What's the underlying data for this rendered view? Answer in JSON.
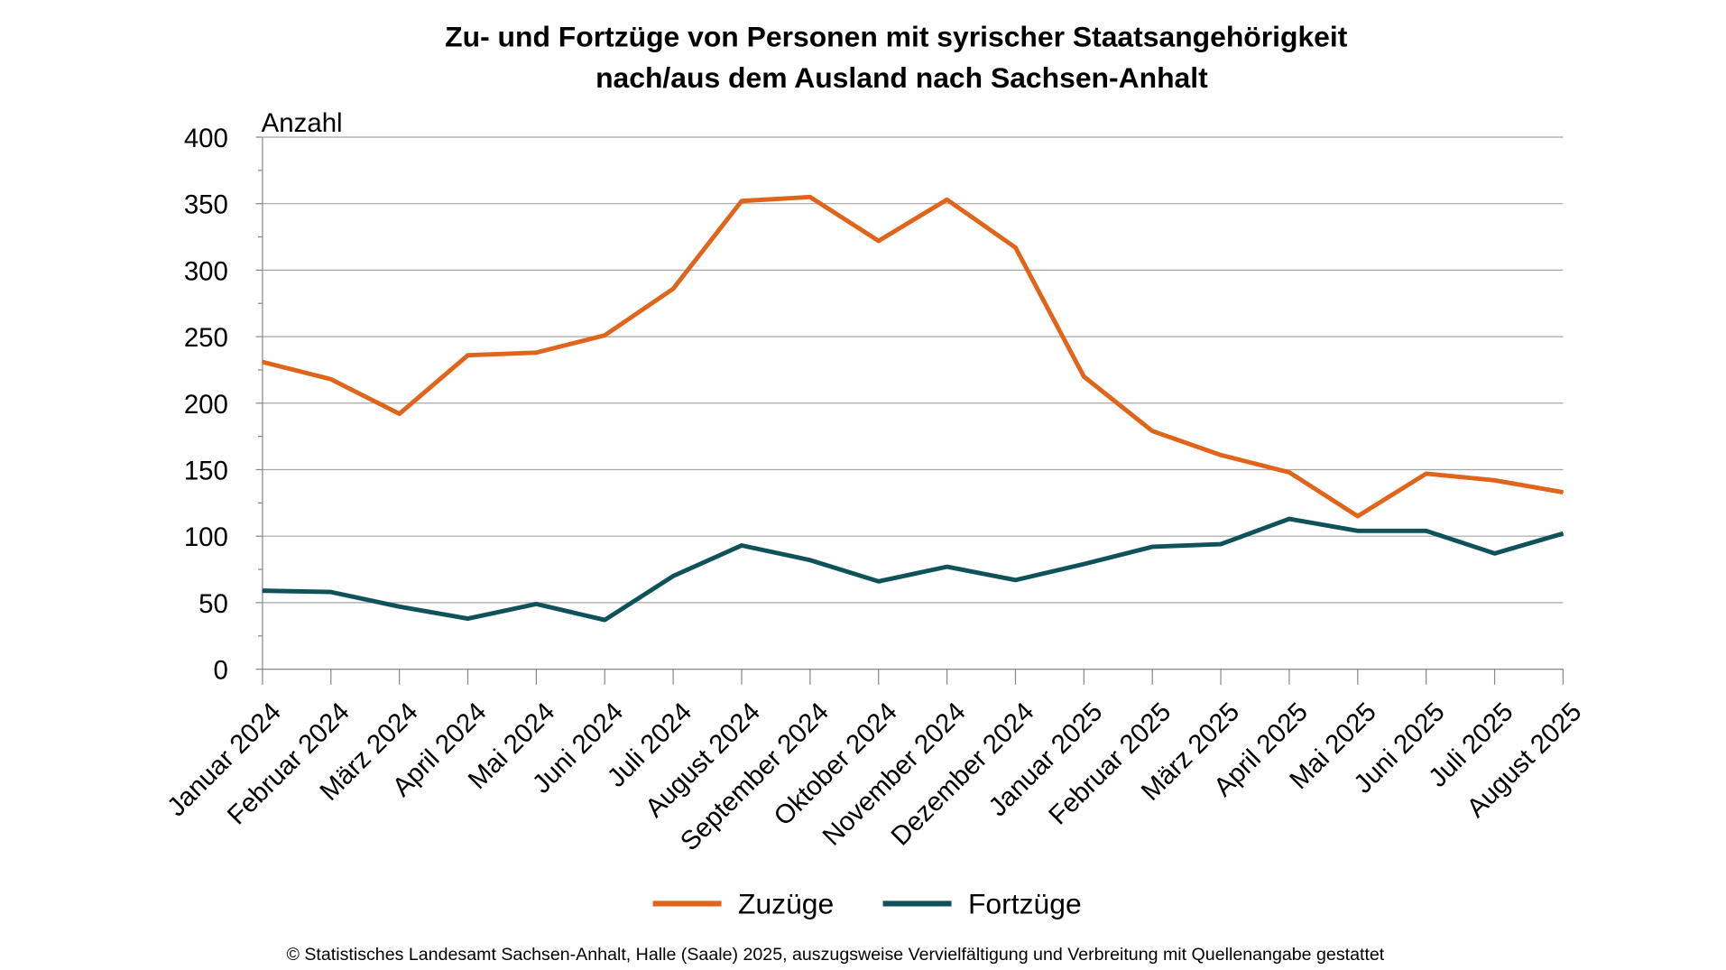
{
  "chart_data": {
    "type": "line",
    "title": "Zu- und Fortzüge von Personen mit syrischer Staatsangehörigkeit",
    "subtitle": "nach/aus dem Ausland nach Sachsen-Anhalt",
    "ylabel": "Anzahl",
    "xlabel": "",
    "ylim": [
      0,
      400
    ],
    "yticks": [
      "0",
      "50",
      "100",
      "150",
      "200",
      "250",
      "300",
      "350",
      "400"
    ],
    "grid": true,
    "legend_position": "bottom",
    "categories": [
      "Januar 2024",
      "Februar 2024",
      "März 2024",
      "April  2024",
      "Mai 2024",
      "Juni 2024",
      "Juli 2024",
      "August 2024",
      "September 2024",
      "Oktober 2024",
      "November 2024",
      "Dezember 2024",
      "Januar 2025",
      "Februar 2025",
      "März 2025",
      "April 2025",
      "Mai 2025",
      "Juni 2025",
      "Juli 2025",
      "August 2025"
    ],
    "series": [
      {
        "name": "Zuzüge",
        "color": "#e0651b",
        "values": [
          231,
          218,
          192,
          236,
          238,
          251,
          286,
          352,
          355,
          322,
          353,
          317,
          220,
          179,
          161,
          148,
          115,
          147,
          142,
          133
        ]
      },
      {
        "name": "Fortzüge",
        "color": "#0f5259",
        "values": [
          59,
          58,
          47,
          38,
          49,
          37,
          70,
          93,
          82,
          66,
          77,
          67,
          79,
          92,
          94,
          113,
          104,
          104,
          87,
          102
        ]
      }
    ]
  },
  "footer": "© Statistisches Landesamt Sachsen-Anhalt, Halle (Saale) 2025, auszugsweise Vervielfältigung und Verbreitung mit Quellenangabe gestattet"
}
